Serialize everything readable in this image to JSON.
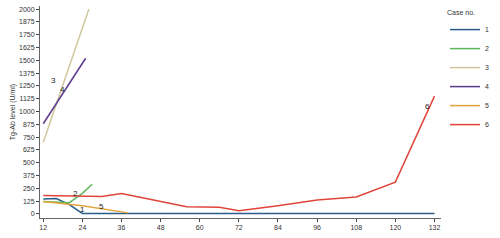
{
  "chart_data": {
    "type": "line",
    "y_label": "Tg-Ab level (U/ml)",
    "legend_title": "Case no.",
    "legend": "upper right",
    "grid": false,
    "xlim": [
      11,
      134
    ],
    "xticks": [
      12,
      24,
      36,
      48,
      60,
      72,
      84,
      96,
      108,
      120,
      132
    ],
    "ylim": [
      -40,
      2030
    ],
    "yticks": [
      0,
      125,
      250,
      375,
      500,
      625,
      750,
      875,
      1000,
      1125,
      1250,
      1375,
      1500,
      1625,
      1750,
      1875,
      2000
    ],
    "series": [
      {
        "name": "1",
        "color": "#2b5d8c",
        "x": [
          12,
          16,
          20,
          24,
          132
        ],
        "values": [
          145,
          150,
          90,
          5,
          5
        ]
      },
      {
        "name": "2",
        "color": "#5cb85c",
        "x": [
          12,
          20,
          24,
          27
        ],
        "values": [
          120,
          110,
          200,
          290
        ]
      },
      {
        "name": "3",
        "color": "#cfc79e",
        "x": [
          12,
          26
        ],
        "values": [
          700,
          2000
        ]
      },
      {
        "name": "4",
        "color": "#5b3b8c",
        "x": [
          12,
          25
        ],
        "values": [
          880,
          1520
        ]
      },
      {
        "name": "5",
        "color": "#e3a33a",
        "x": [
          12,
          24,
          38
        ],
        "values": [
          120,
          80,
          10
        ]
      },
      {
        "name": "6",
        "color": "#e0443a",
        "x": [
          12,
          18,
          24,
          30,
          36,
          48,
          56,
          66,
          72,
          84,
          96,
          108,
          120,
          132
        ],
        "values": [
          180,
          175,
          170,
          170,
          200,
          120,
          70,
          65,
          30,
          80,
          135,
          165,
          310,
          1150
        ]
      }
    ],
    "annotations": [
      {
        "text": "1",
        "x": 24,
        "y": 40
      },
      {
        "text": "2",
        "x": 22,
        "y": 200
      },
      {
        "text": "3",
        "x": 15,
        "y": 1300
      },
      {
        "text": "4",
        "x": 18,
        "y": 1210
      },
      {
        "text": "5",
        "x": 30,
        "y": 75
      },
      {
        "text": "6",
        "x": 130,
        "y": 1050
      }
    ]
  }
}
